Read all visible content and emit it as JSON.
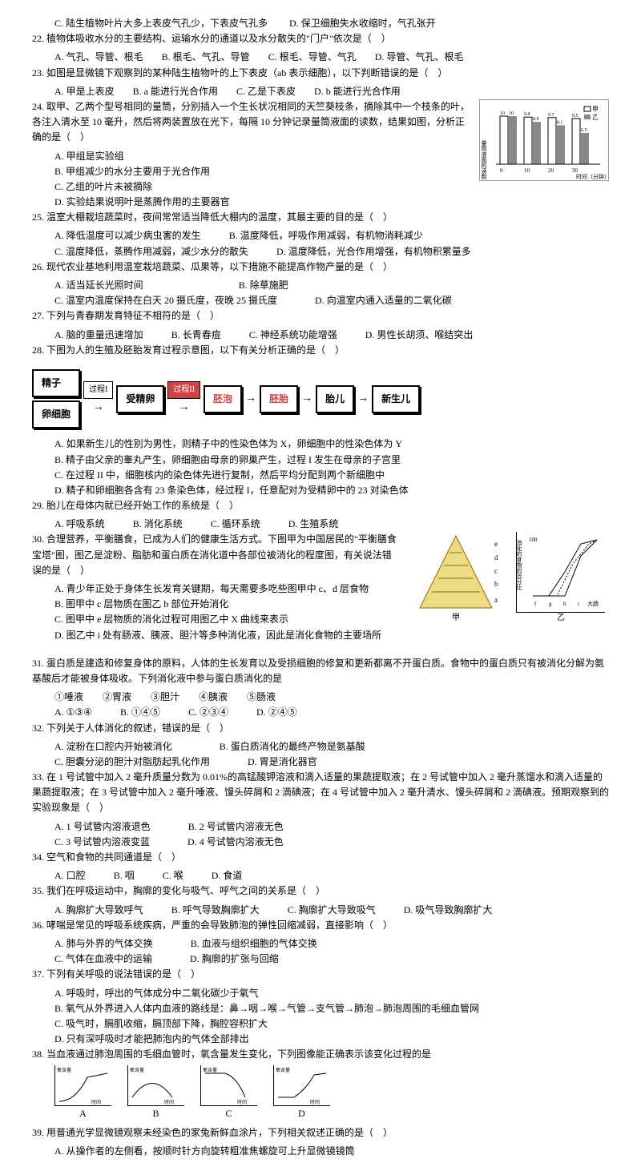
{
  "q21_options": {
    "c": "C. 陆生植物叶片大多上表皮气孔少，下表皮气孔多",
    "d": "D. 保卫细胞失水收缩时，气孔张开"
  },
  "q22": {
    "stem": "22. 植物体吸收水分的主要结构、运输水分的通道以及水分散失的\"门户\"依次是（　）",
    "a": "A. 气孔、导管、根毛",
    "b": "B. 根毛、气孔、导管",
    "c": "C. 根毛、导管、气孔",
    "d": "C. 乙是下表皮",
    "d2": "D. 导管、气孔、根毛"
  },
  "q23": {
    "stem": "23. 如图是显微镜下观察到的某种陆生植物叶的上下表皮（ab 表示细胞），以下判断错误的是（　）",
    "a": "A. 甲是上表皮",
    "b": "B. a 能进行光合作用",
    "c": "C. 乙是下表皮",
    "d": "D. b 能进行光合作用"
  },
  "q24": {
    "stem": "24. 取甲、乙两个型号相同的量筒，分别插入一个生长状况相同的天竺葵枝条，摘除其中一个枝条的叶，各注入清水至 10 毫升，然后将两装置放在光下，每隔 10 分钟记录量筒液面的读数，结果如图，分析正确的是（　）",
    "a": "A. 甲组是实验组",
    "b": "B. 甲组减少的水分主要用于光合作用",
    "c": "C. 乙组的叶片未被摘除",
    "d": "D. 实验结果说明叶是蒸腾作用的主要器官"
  },
  "q25": {
    "stem": "25. 温室大棚栽培蔬菜时，夜间常常适当降低大棚内的温度，其最主要的目的是（　）",
    "a": "A. 降低温度可以减少病虫害的发生",
    "b": "B. 温度降低，呼吸作用减弱，有机物消耗减少",
    "c": "C. 温度降低，蒸腾作用减弱，减少水分的散失",
    "d": "D. 温度降低，光合作用增强，有机物积累量多"
  },
  "q26": {
    "stem": "26. 现代农业基地利用温室栽培蔬菜、瓜果等，以下措施不能提高作物产量的是（　）",
    "a": "A. 适当延长光照时间",
    "b": "B. 除草施肥",
    "c": "C. 温室内温度保持在白天 20 摄氏度，夜晚 25 摄氏度",
    "d": "D. 向温室内通入适量的二氧化碳"
  },
  "q27": {
    "stem": "27. 下列与青春期发育特征不相符的是（　）",
    "a": "A. 脑的重量迅速增加",
    "b": "B. 长青春痘",
    "c": "C. 神经系统功能增强",
    "d": "D. 男性长胡须、喉结突出"
  },
  "q28": {
    "stem": "28. 下图为人的生殖及胚胎发育过程示意图，以下有关分析正确的是（　）",
    "flow": {
      "n1": "精子",
      "n2": "卵细胞",
      "l1": "过程I",
      "n3": "受精卵",
      "l2": "过程II",
      "n4": "胚泡",
      "n5": "胚胎",
      "n6": "胎儿",
      "n7": "新生儿"
    },
    "a": "A. 如果新生儿的性别为男性，则精子中的性染色体为 X，卵细胞中的性染色体为 Y",
    "b": "B. 精子由父亲的睾丸产生，卵细胞由母亲的卵巢产生，过程 I 发生在母亲的子宫里",
    "c": "C. 在过程 II 中，细胞核内的染色体先进行复制，然后平均分配到两个新细胞中",
    "d": "D. 精子和卵细胞各含有 23 条染色体，经过程 I，任意配对为受精卵中的 23 对染色体"
  },
  "q29": {
    "stem": "29. 胎儿在母体内就已经开始工作的系统是（　）",
    "a": "A. 呼吸系统",
    "b": "B. 消化系统",
    "c": "C. 循环系统",
    "d": "D. 生殖系统"
  },
  "q30": {
    "stem": "30. 合理营养，平衡膳食，已成为人们的健康生活方式。下图甲为中国居民的\"平衡膳食宝塔\"图，图乙是淀粉、脂肪和蛋白质在消化道中各部位被消化的程度图，有关说法错误的是（　）",
    "a": "A. 青少年正处于身体生长发育关键期，每天需要多吃些图甲中 c、d 层食物",
    "b": "B. 图甲中 c 层物质在图乙 b 部位开始消化",
    "c": "C. 图甲中 e 层物质的消化过程可用图乙中 X 曲线来表示",
    "d": "D. 图乙中 i 处有肠液、胰液、胆汁等多种消化液，因此是消化食物的主要场所"
  },
  "q31": {
    "stem": "31. 蛋白质是建造和修复身体的原料，人体的生长发育以及受损细胞的修复和更新都离不开蛋白质。食物中的蛋白质只有被消化分解为氨基酸后才能被身体吸收。下列消化液中参与蛋白质消化的是",
    "items": "①唾液　　②胃液　　③胆汁　　④胰液　　⑤肠液",
    "a": "A. ①③④",
    "b": "B. ①④⑤",
    "c": "C. ②③④",
    "d": "D. ②④⑤"
  },
  "q32": {
    "stem": "32. 下列关于人体消化的叙述，错误的是（　）",
    "a": "A. 淀粉在口腔内开始被消化",
    "b": "B. 蛋白质消化的最终产物是氨基酸",
    "c": "C. 胆囊分泌的胆汁对脂肪起乳化作用",
    "d": "D. 胃是消化器官"
  },
  "q33": {
    "stem": "33. 在 1 号试管中加入 2 毫升质量分数为 0.01%的高锰酸钾溶液和滴入适量的果蔬提取液；在 2 号试管中加入 2 毫升蒸馏水和滴入适量的果蔬提取液；在 3 号试管中加入 2 毫升唾液、馒头碎屑和 2 滴碘液；在 4 号试管中加入 2 毫升清水、馒头碎屑和 2 滴碘液。预期观察到的实验现象是（　）",
    "a": "A. 1 号试管内溶液退色",
    "b": "B. 2 号试管内溶液无色",
    "c": "C. 3 号试管内溶液变蓝",
    "d": "D. 4 号试管内溶液无色"
  },
  "q34": {
    "stem": "34. 空气和食物的共同通道是（　）",
    "a": "A. 口腔",
    "b": "B. 咽",
    "c": "C. 喉",
    "d": "D. 食道"
  },
  "q35": {
    "stem": "35. 我们在呼吸运动中，胸廓的变化与吸气、呼气之间的关系是（　）",
    "a": "A. 胸廓扩大导致呼气",
    "b": "B. 呼气导致胸廓扩大",
    "c": "C. 胸廓扩大导致吸气",
    "d": "D. 吸气导致胸廓扩大"
  },
  "q36": {
    "stem": "36. 哮喘是常见的呼吸系统疾病，严重的会导致肺泡的弹性回缩减弱，直接影响（　）",
    "a": "A. 肺与外界的气体交换",
    "b": "B. 血液与组织细胞的气体交换",
    "c": "C. 气体在血液中的运输",
    "d": "D. 胸廓的扩张与回缩"
  },
  "q37": {
    "stem": "37. 下列有关呼吸的说法错误的是（　）",
    "a": "A. 呼吸时，呼出的气体成分中二氧化碳少于氧气",
    "b": "B. 氧气从外界进入人体内血液的路线是：鼻→咽→喉→气管→支气管→肺泡→肺泡周围的毛细血管网",
    "c": "C. 吸气时，膈肌收缩，膈顶部下降，胸腔容积扩大",
    "d": "D. 只有深呼吸时才能把肺泡内的气体全部排出"
  },
  "q38": {
    "stem": "38. 当血液通过肺泡周围的毛细血管时，氧含量发生变化，下列图像能正确表示该变化过程的是",
    "labels": {
      "y": "氧含量",
      "x": "时间",
      "a": "A",
      "b": "B",
      "c": "C",
      "d": "D"
    }
  },
  "q39": {
    "stem": "39. 用普通光学显微镜观察未经染色的家兔新鲜血涂片，下列相关叙述正确的是（　）",
    "a": "A. 从操作者的左侧看，按顺时针方向旋转粗准焦螺旋可上升显微镜镜筒"
  },
  "bar_chart": {
    "ylabel": "量筒液面的读数（毫升）",
    "xlabel": "时间（分钟）",
    "xticks": [
      "0",
      "10",
      "20",
      "30"
    ],
    "series": {
      "jia": {
        "label": "甲",
        "color": "#ffffff",
        "values": [
          10,
          9.8,
          9.7,
          9.5
        ]
      },
      "yi": {
        "label": "乙",
        "color": "#888888",
        "values": [
          10,
          8.8,
          8.1,
          6.5
        ]
      }
    }
  },
  "pyramid": {
    "label": "甲",
    "layers": [
      "e",
      "d",
      "c",
      "b",
      "a"
    ]
  },
  "digestion_chart": {
    "label": "乙",
    "ylabel": "消化的食物的百分比",
    "xlabels": [
      "f",
      "g",
      "h",
      "i",
      "大肠"
    ],
    "ylim": [
      0,
      100
    ]
  }
}
